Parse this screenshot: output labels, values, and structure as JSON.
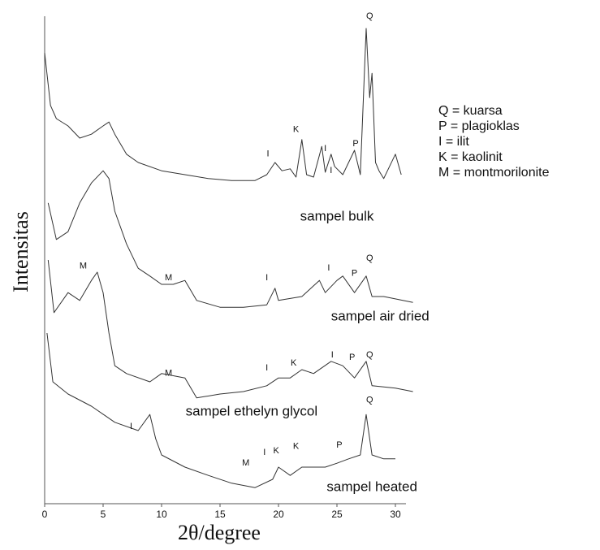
{
  "chart_data": {
    "type": "line",
    "x_label": "2θ/degree",
    "y_label": "Intensitas",
    "xlim": [
      0,
      31
    ],
    "xticks": [
      0,
      5,
      10,
      15,
      20,
      25,
      30
    ],
    "ylim": [
      0,
      100
    ],
    "color": "#333333",
    "grid": false,
    "series": [
      {
        "x": [
          0,
          0.5,
          1,
          2,
          3,
          4,
          5,
          5.5,
          6,
          7,
          8,
          10,
          12,
          14,
          16,
          18,
          19,
          19.7,
          20.3,
          21,
          21.5,
          22,
          22.4,
          23,
          23.7,
          24,
          24.5,
          24.8,
          25.5,
          26.5,
          27,
          27.5,
          27.8,
          28,
          28.3,
          28.6,
          29,
          29.5,
          30,
          30.5
        ],
        "values": [
          92.5,
          81.7,
          79,
          77.5,
          75,
          75.8,
          77.5,
          78.3,
          75.8,
          71.7,
          70,
          68.3,
          67.5,
          66.7,
          66.3,
          66.3,
          67.5,
          70,
          68.3,
          68.7,
          67,
          74.7,
          67.5,
          67,
          73.3,
          68,
          71.7,
          69.2,
          67.5,
          72.5,
          67.5,
          97.5,
          83.3,
          88.3,
          70,
          68.3,
          66.7,
          69.2,
          71.7,
          67.5
        ]
      },
      {
        "x": [
          0.3,
          1,
          2,
          3,
          4,
          5,
          5.5,
          6,
          7,
          8,
          9,
          10,
          11,
          12,
          13,
          15,
          17,
          19,
          19.7,
          20,
          22,
          23.5,
          24,
          25,
          25.5,
          26.5,
          27.5,
          28,
          29,
          31.5
        ],
        "values": [
          61.7,
          54.2,
          55.8,
          61.7,
          65.8,
          68.3,
          66.7,
          60,
          53.3,
          48.3,
          46.7,
          45,
          45,
          45.8,
          41.7,
          40.3,
          40.3,
          40.8,
          44.2,
          41.7,
          42.5,
          45.8,
          43.3,
          45.8,
          46.7,
          43.3,
          46.7,
          42.5,
          42.5,
          41.3
        ]
      },
      {
        "x": [
          0.3,
          0.8,
          2,
          3,
          4,
          4.5,
          5,
          5.5,
          6,
          7,
          9,
          10,
          12,
          13,
          15,
          17,
          19,
          20,
          21,
          22,
          23,
          24.5,
          25.5,
          26.5,
          27.5,
          28,
          30,
          31.5
        ],
        "values": [
          50,
          39.2,
          43.3,
          41.7,
          45.8,
          47.5,
          43.3,
          35,
          28.3,
          26.7,
          25,
          26.7,
          25.8,
          21.7,
          22.5,
          23,
          24.2,
          25.8,
          25.8,
          27.5,
          26.7,
          29.2,
          28.3,
          25.8,
          29.2,
          24.2,
          23.7,
          23
        ]
      },
      {
        "x": [
          0.2,
          0.7,
          2,
          4,
          6,
          8,
          9,
          9.5,
          10,
          12,
          14,
          16,
          18,
          19.5,
          20,
          21,
          22,
          24,
          25,
          26,
          27,
          27.5,
          28,
          29,
          30
        ],
        "values": [
          35,
          25,
          22.5,
          20,
          16.7,
          15,
          18.3,
          13.3,
          10,
          7.5,
          5.8,
          4.2,
          3.3,
          5,
          7.5,
          5.8,
          7.5,
          7.5,
          8.3,
          9.2,
          10,
          18.3,
          10,
          9.2,
          9.2
        ]
      }
    ],
    "annotations": [
      {
        "text": "Q",
        "x": 27.8,
        "y": 100
      },
      {
        "text": "K",
        "x": 21.5,
        "y": 76.7
      },
      {
        "text": "I",
        "x": 19.1,
        "y": 71.7
      },
      {
        "text": "I",
        "x": 24,
        "y": 72.8
      },
      {
        "text": "I",
        "x": 24.5,
        "y": 68.3
      },
      {
        "text": "P",
        "x": 26.6,
        "y": 73.8
      },
      {
        "text": "M",
        "x": 3.3,
        "y": 48.7
      },
      {
        "text": "M",
        "x": 10.6,
        "y": 46.3
      },
      {
        "text": "I",
        "x": 19,
        "y": 46.3
      },
      {
        "text": "I",
        "x": 24.3,
        "y": 48.3
      },
      {
        "text": "P",
        "x": 26.5,
        "y": 47.2
      },
      {
        "text": "Q",
        "x": 27.8,
        "y": 50.3
      },
      {
        "text": "M",
        "x": 10.6,
        "y": 26.7
      },
      {
        "text": "I",
        "x": 19,
        "y": 27.8
      },
      {
        "text": "K",
        "x": 21.3,
        "y": 28.8
      },
      {
        "text": "I",
        "x": 24.6,
        "y": 30.5
      },
      {
        "text": "P",
        "x": 26.3,
        "y": 30
      },
      {
        "text": "Q",
        "x": 27.8,
        "y": 30.5
      },
      {
        "text": "I",
        "x": 7.4,
        "y": 15.8
      },
      {
        "text": "M",
        "x": 17.2,
        "y": 8.3
      },
      {
        "text": "I",
        "x": 18.8,
        "y": 10.5
      },
      {
        "text": "K",
        "x": 19.8,
        "y": 10.8
      },
      {
        "text": "K",
        "x": 21.5,
        "y": 11.7
      },
      {
        "text": "P",
        "x": 25.2,
        "y": 12
      },
      {
        "text": "Q",
        "x": 27.8,
        "y": 21.2
      }
    ],
    "sample_labels": [
      {
        "text": "sampel bulk",
        "x": 25,
        "y": 58.8
      },
      {
        "text": "sampel air dried",
        "x": 28.7,
        "y": 38.3
      },
      {
        "text": "sampel ethelyn  glycol",
        "x": 17.7,
        "y": 18.8
      },
      {
        "text": "sampel heated",
        "x": 28,
        "y": 3.3
      }
    ],
    "key": [
      "Q = kuarsa",
      "P = plagioklas",
      "I = ilit",
      "K = kaolinit",
      "M = montmorilonite"
    ]
  }
}
